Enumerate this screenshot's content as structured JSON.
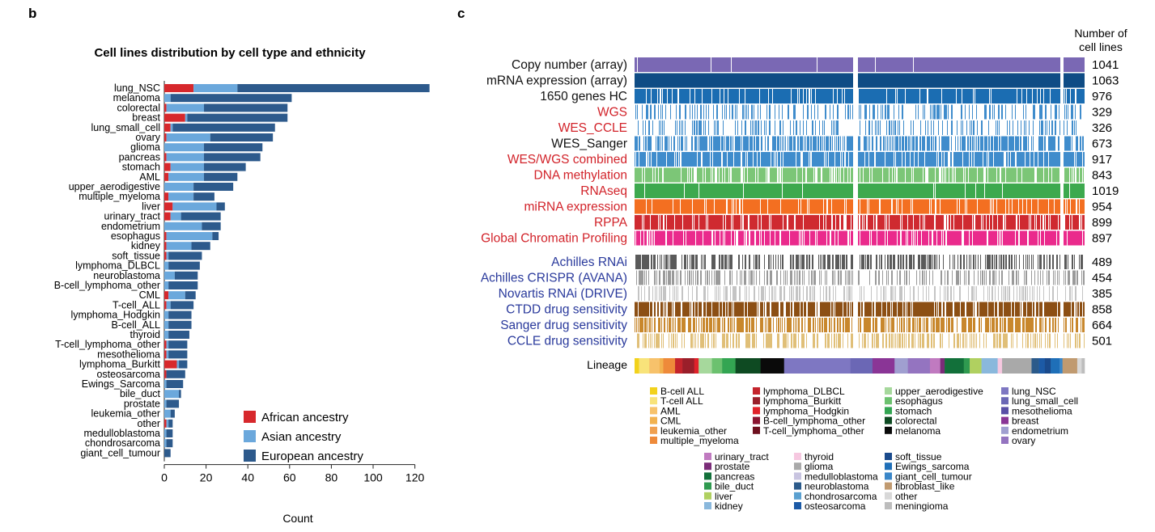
{
  "panel_b": {
    "letter": "b",
    "title": "Cell lines distribution by cell type and ethnicity",
    "xlabel": "Count",
    "legend": [
      {
        "label": "African ancestry",
        "color": "#d7282c"
      },
      {
        "label": "Asian ancestry",
        "color": "#6ba8dc"
      },
      {
        "label": "European ancestry",
        "color": "#2d5a8c"
      }
    ]
  },
  "panel_c": {
    "letter": "c",
    "header_line1": "Number of",
    "header_line2": "cell lines",
    "lineage_label": "Lineage",
    "legend_columns": [
      [
        {
          "label": "B-cell ALL",
          "color": "#f2d21c"
        },
        {
          "label": "T-cell ALL",
          "color": "#f8e37a"
        },
        {
          "label": "AML",
          "color": "#f7c26b"
        },
        {
          "label": "CML",
          "color": "#f2b24f"
        },
        {
          "label": "leukemia_other",
          "color": "#f0a050"
        },
        {
          "label": "multiple_myeloma",
          "color": "#ee8a3a"
        }
      ],
      [
        {
          "label": "lymphoma_DLBCL",
          "color": "#c4242c"
        },
        {
          "label": "lymphoma_Burkitt",
          "color": "#9a1f2a"
        },
        {
          "label": "lymphoma_Hodgkin",
          "color": "#e0222a"
        },
        {
          "label": "B-cell_lymphoma_other",
          "color": "#8a1430"
        },
        {
          "label": "T-cell_lymphoma_other",
          "color": "#6e0f1e"
        }
      ],
      [
        {
          "label": "upper_aerodigestive",
          "color": "#a6d89c"
        },
        {
          "label": "esophagus",
          "color": "#6cc16f"
        },
        {
          "label": "stomach",
          "color": "#33a552"
        },
        {
          "label": "colorectal",
          "color": "#0e4a22"
        },
        {
          "label": "melanoma",
          "color": "#0a0a0a"
        }
      ],
      [
        {
          "label": "lung_NSC",
          "color": "#7e77c2"
        },
        {
          "label": "lung_small_cell",
          "color": "#6b67b5"
        },
        {
          "label": "mesothelioma",
          "color": "#5a4fa6"
        },
        {
          "label": "breast",
          "color": "#8a3596"
        },
        {
          "label": "endometrium",
          "color": "#a09fd0"
        },
        {
          "label": "ovary",
          "color": "#9474c0"
        }
      ],
      [
        {
          "label": "urinary_tract",
          "color": "#c07ac0"
        },
        {
          "label": "prostate",
          "color": "#7a2c78"
        },
        {
          "label": "pancreas",
          "color": "#12703a"
        },
        {
          "label": "bile_duct",
          "color": "#2f9a50"
        },
        {
          "label": "liver",
          "color": "#b0d060"
        },
        {
          "label": "kidney",
          "color": "#8ab8dc"
        }
      ],
      [
        {
          "label": "thyroid",
          "color": "#f6c8e0"
        },
        {
          "label": "glioma",
          "color": "#a9a9a9"
        },
        {
          "label": "medulloblastoma",
          "color": "#c8c4e0"
        },
        {
          "label": "neuroblastoma",
          "color": "#2b5a8a"
        },
        {
          "label": "chondrosarcoma",
          "color": "#5aa0d0"
        },
        {
          "label": "osteosarcoma",
          "color": "#1c5aa6"
        }
      ],
      [
        {
          "label": "soft_tissue",
          "color": "#1a4a8c"
        },
        {
          "label": "Ewings_sarcoma",
          "color": "#1f6fb8"
        },
        {
          "label": "giant_cell_tumour",
          "color": "#3a86c8"
        },
        {
          "label": "fibroblast_like",
          "color": "#c09a70"
        },
        {
          "label": "other",
          "color": "#d8d8d8"
        },
        {
          "label": "meningioma",
          "color": "#bdbdbd"
        }
      ]
    ]
  },
  "chart_data": [
    {
      "type": "bar",
      "orientation": "horizontal",
      "stacked": true,
      "title": "Cell lines distribution by cell type and ethnicity",
      "xlabel": "Count",
      "ylabel": "",
      "xlim": [
        0,
        128
      ],
      "xticks": [
        "0",
        "20",
        "40",
        "60",
        "80",
        "100",
        "120"
      ],
      "legend_position": "bottom-right",
      "categories": [
        "lung_NSC",
        "melanoma",
        "colorectal",
        "breast",
        "lung_small_cell",
        "ovary",
        "glioma",
        "pancreas",
        "stomach",
        "AML",
        "upper_aerodigestive",
        "multiple_myeloma",
        "liver",
        "urinary_tract",
        "endometrium",
        "esophagus",
        "kidney",
        "soft_tissue",
        "lymphoma_DLBCL",
        "neuroblastoma",
        "B-cell_lymphoma_other",
        "CML",
        "T-cell_ALL",
        "lymphoma_Hodgkin",
        "B-cell_ALL",
        "thyroid",
        "T-cell_lymphoma_other",
        "mesothelioma",
        "lymphoma_Burkitt",
        "osteosarcoma",
        "Ewings_Sarcoma",
        "bile_duct",
        "prostate",
        "leukemia_other",
        "other",
        "medulloblastoma",
        "chondrosarcoma",
        "giant_cell_tumour"
      ],
      "series": [
        {
          "name": "African ancestry",
          "color": "#d7282c",
          "values": [
            14,
            0,
            1,
            10,
            3,
            1,
            0,
            1,
            3,
            2,
            0,
            2,
            4,
            3,
            0,
            1,
            1,
            1,
            0,
            0,
            0,
            2,
            1,
            0,
            0,
            0,
            1,
            1,
            6,
            1,
            0,
            0,
            0,
            0,
            1,
            0,
            0,
            0
          ]
        },
        {
          "name": "Asian ancestry",
          "color": "#6ba8dc",
          "values": [
            21,
            3,
            18,
            1,
            1,
            21,
            19,
            18,
            16,
            17,
            14,
            12,
            21,
            5,
            18,
            22,
            12,
            1,
            2,
            5,
            2,
            8,
            2,
            2,
            2,
            2,
            1,
            1,
            1,
            0,
            1,
            7,
            1,
            3,
            1,
            1,
            1,
            0
          ]
        },
        {
          "name": "European ancestry",
          "color": "#2d5a8c",
          "values": [
            92,
            58,
            40,
            48,
            49,
            30,
            28,
            27,
            20,
            16,
            19,
            10,
            4,
            19,
            9,
            3,
            9,
            16,
            15,
            11,
            14,
            5,
            11,
            11,
            11,
            10,
            9,
            9,
            4,
            9,
            8,
            1,
            6,
            2,
            2,
            3,
            3,
            3
          ]
        }
      ]
    },
    {
      "type": "heatmap",
      "title": "",
      "ylabel": "",
      "header": "Number of cell lines",
      "rows": [
        {
          "label": "Copy number (array)",
          "count": "1041",
          "color": "#7a68b4",
          "label_color": "#111111",
          "value": 1041
        },
        {
          "label": "mRNA expression (array)",
          "count": "1063",
          "color": "#0f4c85",
          "label_color": "#111111",
          "value": 1063
        },
        {
          "label": "1650 genes HC",
          "count": "976",
          "color": "#1b6db2",
          "label_color": "#111111",
          "value": 976
        },
        {
          "label": "WGS",
          "count": "329",
          "color": "#3f8ccc",
          "label_color": "#d2232a",
          "value": 329
        },
        {
          "label": "WES_CCLE",
          "count": "326",
          "color": "#3f8ccc",
          "label_color": "#d2232a",
          "value": 326
        },
        {
          "label": "WES_Sanger",
          "count": "673",
          "color": "#3f8ccc",
          "label_color": "#111111",
          "value": 673
        },
        {
          "label": "WES/WGS combined",
          "count": "917",
          "color": "#3f8ccc",
          "label_color": "#d2232a",
          "value": 917
        },
        {
          "label": "DNA methylation",
          "count": "843",
          "color": "#7cc677",
          "label_color": "#d2232a",
          "value": 843
        },
        {
          "label": "RNAseq",
          "count": "1019",
          "color": "#3da94e",
          "label_color": "#d2232a",
          "value": 1019
        },
        {
          "label": "miRNA expression",
          "count": "954",
          "color": "#f36f21",
          "label_color": "#d2232a",
          "value": 954
        },
        {
          "label": "RPPA",
          "count": "899",
          "color": "#cf2a30",
          "label_color": "#d2232a",
          "value": 899
        },
        {
          "label": "Global Chromatin Profiling",
          "count": "897",
          "color": "#ea2a8c",
          "label_color": "#d2232a",
          "value": 897
        },
        {
          "label": "Achilles RNAi",
          "count": "489",
          "color": "#5a5a5a",
          "label_color": "#2a3a9c",
          "value": 489
        },
        {
          "label": "Achilles CRISPR (AVANA)",
          "count": "454",
          "color": "#9a9a9a",
          "label_color": "#2a3a9c",
          "value": 454
        },
        {
          "label": "Novartis RNAi (DRIVE)",
          "count": "385",
          "color": "#c4c4c4",
          "label_color": "#2a3a9c",
          "value": 385
        },
        {
          "label": "CTDD drug sensitivity",
          "count": "858",
          "color": "#8c4f14",
          "label_color": "#2a3a9c",
          "value": 858
        },
        {
          "label": "Sanger drug sensitivity",
          "count": "664",
          "color": "#c8872c",
          "label_color": "#2a3a9c",
          "value": 664
        },
        {
          "label": "CCLE drug sensitivity",
          "count": "501",
          "color": "#e0bf78",
          "label_color": "#2a3a9c",
          "value": 501
        }
      ],
      "lineage_segments": [
        {
          "name": "B-cell ALL",
          "color": "#f2d21c",
          "n": 6
        },
        {
          "name": "T-cell ALL",
          "color": "#f8e37a",
          "n": 14
        },
        {
          "name": "AML",
          "color": "#f7c26b",
          "n": 14
        },
        {
          "name": "CML",
          "color": "#f2b24f",
          "n": 5
        },
        {
          "name": "multiple_myeloma",
          "color": "#ee8a3a",
          "n": 16
        },
        {
          "name": "lymphoma_DLBCL",
          "color": "#c4242c",
          "n": 10
        },
        {
          "name": "lymphoma_Burkitt",
          "color": "#9a1f2a",
          "n": 16
        },
        {
          "name": "lymphoma_Hodgkin",
          "color": "#e0222a",
          "n": 6
        },
        {
          "name": "upper_aerodigestive",
          "color": "#a6d89c",
          "n": 18
        },
        {
          "name": "esophagus",
          "color": "#6cc16f",
          "n": 14
        },
        {
          "name": "stomach",
          "color": "#33a552",
          "n": 18
        },
        {
          "name": "colorectal",
          "color": "#0e4a22",
          "n": 34
        },
        {
          "name": "melanoma",
          "color": "#0a0a0a",
          "n": 32
        },
        {
          "name": "lung_NSC",
          "color": "#7e77c2",
          "n": 90
        },
        {
          "name": "lung_small_cell",
          "color": "#6b67b5",
          "n": 30
        },
        {
          "name": "breast",
          "color": "#8a3596",
          "n": 30
        },
        {
          "name": "endometrium",
          "color": "#a09fd0",
          "n": 18
        },
        {
          "name": "ovary",
          "color": "#9474c0",
          "n": 30
        },
        {
          "name": "urinary_tract",
          "color": "#c07ac0",
          "n": 14
        },
        {
          "name": "prostate",
          "color": "#7a2c78",
          "n": 6
        },
        {
          "name": "pancreas",
          "color": "#12703a",
          "n": 26
        },
        {
          "name": "bile_duct",
          "color": "#2f9a50",
          "n": 8
        },
        {
          "name": "liver",
          "color": "#b0d060",
          "n": 16
        },
        {
          "name": "kidney",
          "color": "#8ab8dc",
          "n": 22
        },
        {
          "name": "thyroid",
          "color": "#f6c8e0",
          "n": 6
        },
        {
          "name": "glioma",
          "color": "#a9a9a9",
          "n": 40
        },
        {
          "name": "neuroblastoma",
          "color": "#2b5a8a",
          "n": 10
        },
        {
          "name": "osteosarcoma",
          "color": "#1c5aa6",
          "n": 8
        },
        {
          "name": "soft_tissue",
          "color": "#1a4a8c",
          "n": 8
        },
        {
          "name": "Ewings_sarcoma",
          "color": "#1f6fb8",
          "n": 12
        },
        {
          "name": "giant_cell_tumour",
          "color": "#3a86c8",
          "n": 4
        },
        {
          "name": "fibroblast_like",
          "color": "#c09a70",
          "n": 20
        },
        {
          "name": "other",
          "color": "#d8d8d8",
          "n": 6
        },
        {
          "name": "meningioma",
          "color": "#bdbdbd",
          "n": 4
        }
      ]
    }
  ]
}
